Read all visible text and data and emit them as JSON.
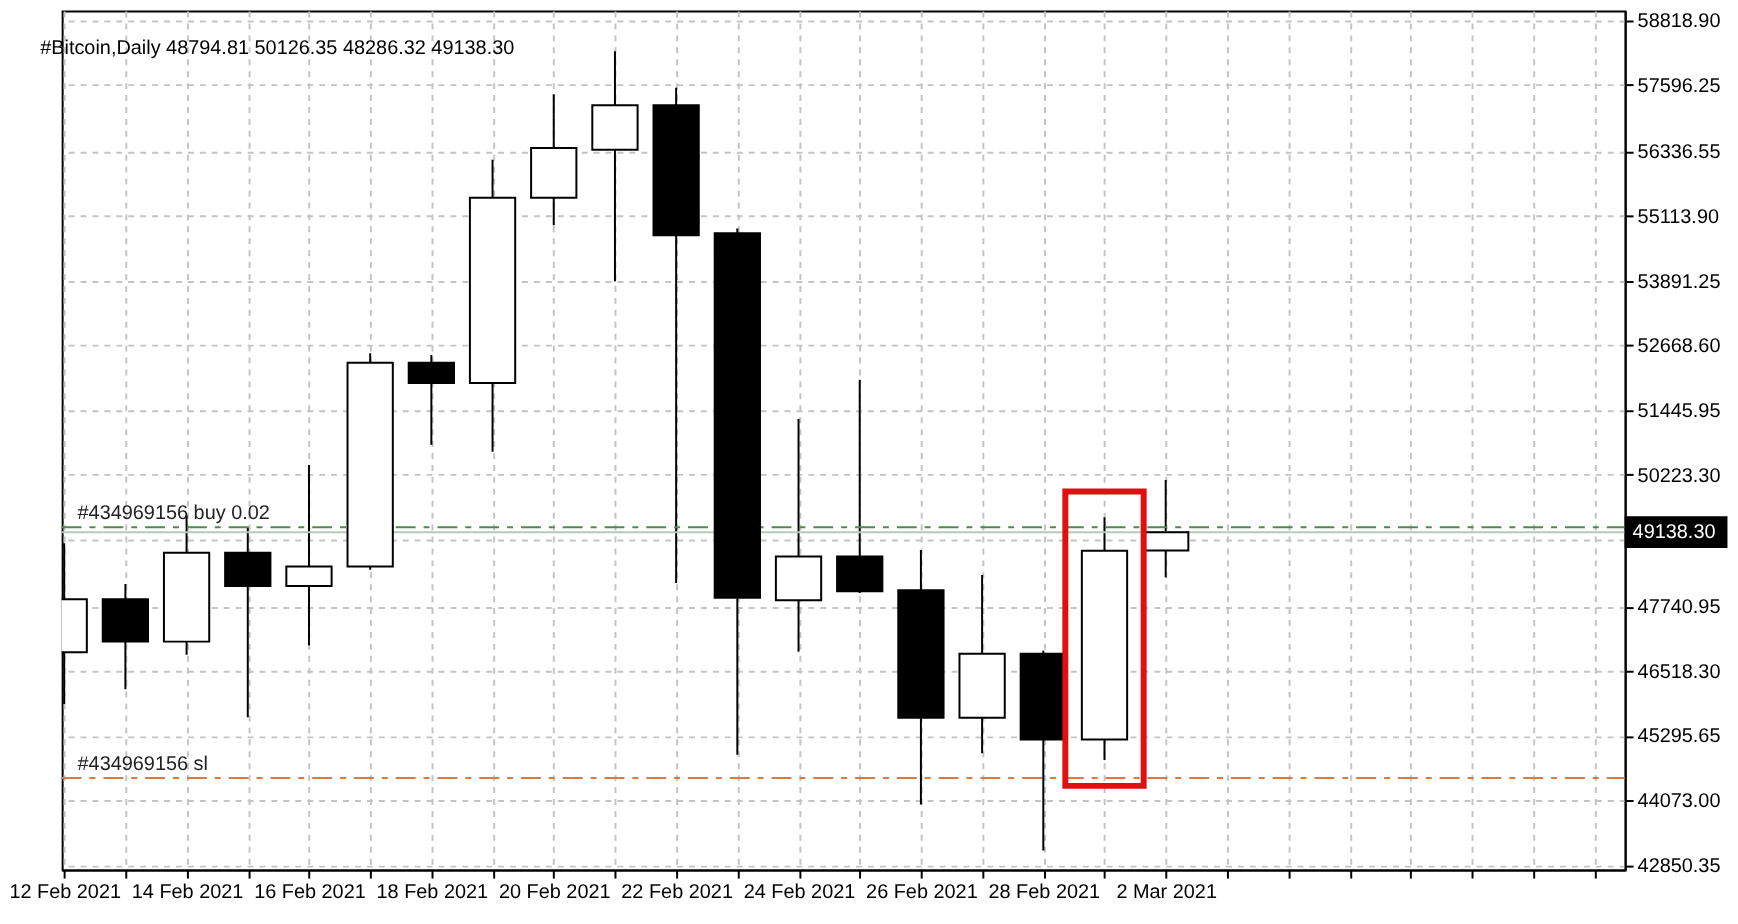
{
  "chart_data": {
    "type": "candlestick",
    "title": "#Bitcoin,Daily 48794.81 50126.35 48286.32 49138.30",
    "x": [
      "2021-02-12",
      "2021-02-13",
      "2021-02-14",
      "2021-02-15",
      "2021-02-16",
      "2021-02-17",
      "2021-02-18",
      "2021-02-19",
      "2021-02-20",
      "2021-02-21",
      "2021-02-22",
      "2021-02-23",
      "2021-02-24",
      "2021-02-25",
      "2021-02-26",
      "2021-02-27",
      "2021-02-28",
      "2021-03-01",
      "2021-03-02"
    ],
    "ohlc": [
      [
        46870,
        48930,
        45890,
        47870
      ],
      [
        47870,
        48160,
        46170,
        47070
      ],
      [
        47070,
        49460,
        46820,
        48750
      ],
      [
        48750,
        49230,
        45640,
        48120
      ],
      [
        48120,
        50410,
        47000,
        48490
      ],
      [
        48490,
        52520,
        48430,
        52340
      ],
      [
        52340,
        52490,
        50790,
        51960
      ],
      [
        51960,
        56180,
        50660,
        55460
      ],
      [
        55460,
        57420,
        54940,
        56400
      ],
      [
        56370,
        58230,
        53880,
        57210
      ],
      [
        57210,
        57540,
        48180,
        54750
      ],
      [
        54790,
        54880,
        44930,
        47900
      ],
      [
        47850,
        51280,
        46880,
        48680
      ],
      [
        48680,
        52020,
        47990,
        48020
      ],
      [
        48040,
        48800,
        43990,
        45630
      ],
      [
        45630,
        48330,
        44960,
        46840
      ],
      [
        46840,
        46900,
        43120,
        45220
      ],
      [
        45220,
        49420,
        44830,
        48790
      ],
      [
        48794.81,
        50126.35,
        48286.32,
        49138.3
      ]
    ],
    "colors": [
      "#ffffff",
      "#000000",
      "#ffffff",
      "#000000",
      "#ffffff",
      "#ffffff",
      "#000000",
      "#ffffff",
      "#ffffff",
      "#ffffff",
      "#000000",
      "#000000",
      "#ffffff",
      "#000000",
      "#000000",
      "#ffffff",
      "#000000",
      "#ffffff",
      "#ffffff"
    ],
    "xlim": [
      "2021-02-11T23:00",
      "2021-03-09T12:00"
    ],
    "xticks": [
      {
        "value": "2021-02-12",
        "label": "12 Feb 2021"
      },
      {
        "value": "2021-02-13",
        "label": null
      },
      {
        "value": "2021-02-14",
        "label": "14 Feb 2021"
      },
      {
        "value": "2021-02-15",
        "label": null
      },
      {
        "value": "2021-02-16",
        "label": "16 Feb 2021"
      },
      {
        "value": "2021-02-17",
        "label": null
      },
      {
        "value": "2021-02-18",
        "label": "18 Feb 2021"
      },
      {
        "value": "2021-02-19",
        "label": null
      },
      {
        "value": "2021-02-20",
        "label": "20 Feb 2021"
      },
      {
        "value": "2021-02-21",
        "label": null
      },
      {
        "value": "2021-02-22",
        "label": "22 Feb 2021"
      },
      {
        "value": "2021-02-23",
        "label": null
      },
      {
        "value": "2021-02-24",
        "label": "24 Feb 2021"
      },
      {
        "value": "2021-02-25",
        "label": null
      },
      {
        "value": "2021-02-26",
        "label": "26 Feb 2021"
      },
      {
        "value": "2021-02-27",
        "label": null
      },
      {
        "value": "2021-02-28",
        "label": "28 Feb 2021"
      },
      {
        "value": "2021-03-01",
        "label": null
      },
      {
        "value": "2021-03-02",
        "label": "2 Mar 2021"
      },
      {
        "value": "2021-03-03",
        "label": null
      },
      {
        "value": "2021-03-04",
        "label": null
      },
      {
        "value": "2021-03-05",
        "label": null
      },
      {
        "value": "2021-03-06",
        "label": null
      },
      {
        "value": "2021-03-07",
        "label": null
      },
      {
        "value": "2021-03-08",
        "label": null
      },
      {
        "value": "2021-03-09",
        "label": null
      }
    ],
    "ylim": [
      42760,
      59000
    ],
    "yticks": [
      {
        "value": 58818.9,
        "label": "58818.90"
      },
      {
        "value": 57596.25,
        "label": "57596.25"
      },
      {
        "value": 56336.55,
        "label": "56336.55"
      },
      {
        "value": 55113.9,
        "label": "55113.90"
      },
      {
        "value": 53891.25,
        "label": "53891.25"
      },
      {
        "value": 52668.6,
        "label": "52668.60"
      },
      {
        "value": 51445.95,
        "label": "51445.95"
      },
      {
        "value": 50223.3,
        "label": "50223.30"
      },
      {
        "value": 49000,
        "label": null
      },
      {
        "value": 47740.95,
        "label": "47740.95"
      },
      {
        "value": 46518.3,
        "label": "46518.30"
      },
      {
        "value": 45295.65,
        "label": "45295.65"
      },
      {
        "value": 44073,
        "label": "44073.00"
      },
      {
        "value": 42850.35,
        "label": "42850.35"
      }
    ],
    "grid": true,
    "ref_lines": [
      {
        "axis": "y",
        "value": 49230,
        "label": "#434969156 buy 0.02",
        "color": "#4e8a4e",
        "line_style": "dashed"
      },
      {
        "axis": "y",
        "value": 49138.3,
        "label": "49138.30",
        "color": "#b4ccb4",
        "line_style": "solid"
      },
      {
        "axis": "y",
        "value": 44490,
        "label": "#434969156 sl",
        "color": "#e0783c",
        "line_style": "dashed"
      }
    ]
  }
}
